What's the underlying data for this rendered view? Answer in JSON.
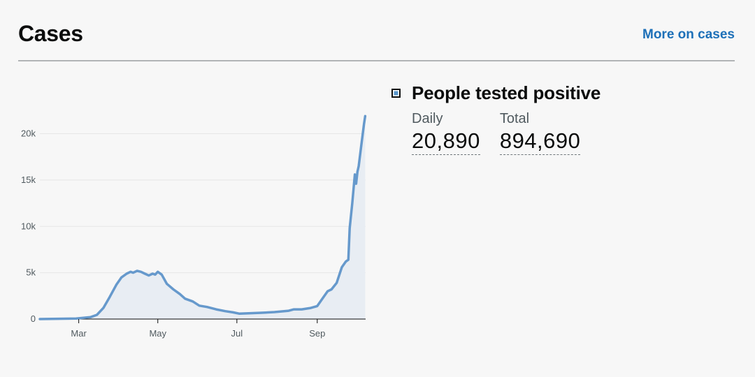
{
  "header": {
    "title": "Cases",
    "more_link": "More on cases"
  },
  "metric": {
    "title": "People tested positive",
    "daily_label": "Daily",
    "daily_value": "20,890",
    "total_label": "Total",
    "total_value": "894,690"
  },
  "colors": {
    "line": "#6699cc",
    "area": "#e8edf3",
    "link": "#1d70b8"
  },
  "chart_data": {
    "type": "area",
    "x_tick_labels": [
      "Mar",
      "May",
      "Jul",
      "Sep"
    ],
    "x_tick_dates": [
      "2020-03-01",
      "2020-05-01",
      "2020-07-01",
      "2020-09-01"
    ],
    "y_tick_labels": [
      "0",
      "5k",
      "10k",
      "15k",
      "20k"
    ],
    "y_tick_values": [
      0,
      5000,
      10000,
      15000,
      20000
    ],
    "ylim": [
      0,
      22000
    ],
    "xlim": [
      "2020-01-31",
      "2020-10-04"
    ],
    "grid": true,
    "series": [
      {
        "name": "People tested positive",
        "points": [
          [
            "2020-01-31",
            0
          ],
          [
            "2020-02-28",
            50
          ],
          [
            "2020-03-10",
            200
          ],
          [
            "2020-03-15",
            450
          ],
          [
            "2020-03-20",
            1200
          ],
          [
            "2020-03-25",
            2400
          ],
          [
            "2020-03-30",
            3700
          ],
          [
            "2020-04-03",
            4500
          ],
          [
            "2020-04-07",
            4900
          ],
          [
            "2020-04-10",
            5100
          ],
          [
            "2020-04-12",
            5000
          ],
          [
            "2020-04-15",
            5200
          ],
          [
            "2020-04-18",
            5100
          ],
          [
            "2020-04-21",
            4900
          ],
          [
            "2020-04-24",
            4700
          ],
          [
            "2020-04-27",
            4900
          ],
          [
            "2020-04-29",
            4800
          ],
          [
            "2020-05-01",
            5100
          ],
          [
            "2020-05-04",
            4800
          ],
          [
            "2020-05-08",
            3800
          ],
          [
            "2020-05-13",
            3200
          ],
          [
            "2020-05-18",
            2700
          ],
          [
            "2020-05-22",
            2200
          ],
          [
            "2020-05-28",
            1900
          ],
          [
            "2020-06-02",
            1450
          ],
          [
            "2020-06-08",
            1300
          ],
          [
            "2020-06-15",
            1050
          ],
          [
            "2020-06-22",
            850
          ],
          [
            "2020-06-28",
            720
          ],
          [
            "2020-07-03",
            580
          ],
          [
            "2020-07-10",
            620
          ],
          [
            "2020-07-20",
            680
          ],
          [
            "2020-07-30",
            750
          ],
          [
            "2020-08-10",
            900
          ],
          [
            "2020-08-14",
            1050
          ],
          [
            "2020-08-20",
            1050
          ],
          [
            "2020-08-27",
            1200
          ],
          [
            "2020-09-01",
            1400
          ],
          [
            "2020-09-05",
            2200
          ],
          [
            "2020-09-09",
            3000
          ],
          [
            "2020-09-12",
            3200
          ],
          [
            "2020-09-16",
            3900
          ],
          [
            "2020-09-20",
            5600
          ],
          [
            "2020-09-23",
            6200
          ],
          [
            "2020-09-25",
            6400
          ],
          [
            "2020-09-26",
            9800
          ],
          [
            "2020-09-28",
            12500
          ],
          [
            "2020-09-30",
            15600
          ],
          [
            "2020-10-01",
            14600
          ],
          [
            "2020-10-02",
            15900
          ],
          [
            "2020-10-03",
            16500
          ],
          [
            "2020-10-05",
            18800
          ],
          [
            "2020-10-07",
            21000
          ],
          [
            "2020-10-08",
            21900
          ]
        ]
      }
    ]
  }
}
